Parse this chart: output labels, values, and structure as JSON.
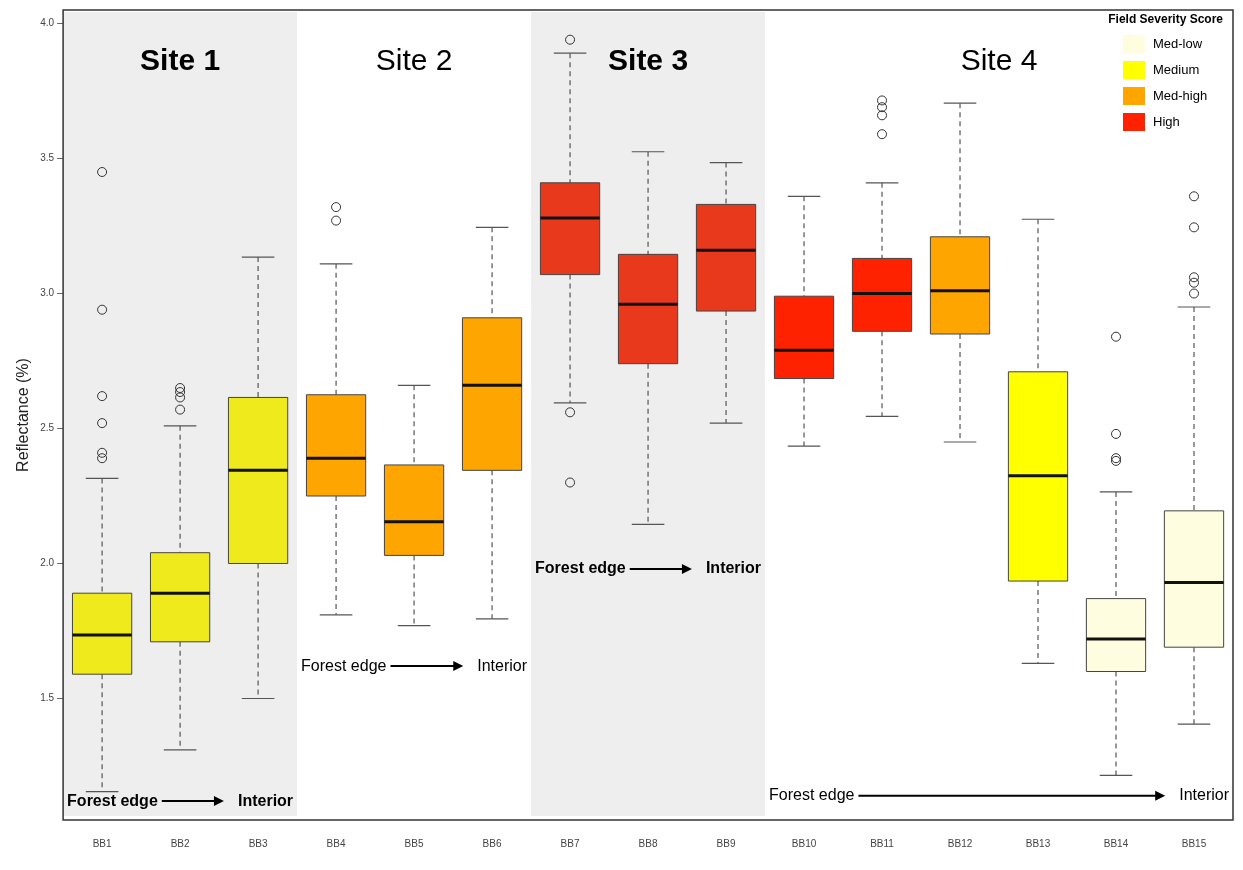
{
  "chart_data": {
    "type": "box",
    "ylabel": "Reflectance (%)",
    "legend_title": "Field Severity Score",
    "legend": "top right",
    "categories": [
      "BB1",
      "BB2",
      "BB3",
      "BB4",
      "BB5",
      "BB6",
      "BB7",
      "BB8",
      "BB9",
      "BB10",
      "BB11",
      "BB12",
      "BB13",
      "BB14",
      "BB15"
    ],
    "ylim": [
      1.05,
      4.05
    ],
    "yticks": [
      {
        "value": 1.5,
        "label": "1.5"
      },
      {
        "value": 2,
        "label": "2.0"
      },
      {
        "value": 2.5,
        "label": "2.5"
      },
      {
        "value": 3,
        "label": "3.0"
      },
      {
        "value": 3.5,
        "label": "3.5"
      },
      {
        "value": 4,
        "label": "4.0"
      }
    ],
    "bands": [
      {
        "axis": "x",
        "from": "BB1",
        "to": "BB3",
        "label": "Site 1",
        "color": "#eeeeee"
      },
      {
        "axis": "x",
        "from": "BB7",
        "to": "BB9",
        "label": "Site 3",
        "color": "#eeeeee"
      }
    ],
    "annotations": [
      "Site 2",
      "Site 4",
      "Forest edge",
      "Interior",
      "Forest edge",
      "Interior",
      "Forest edge",
      "Interior",
      "Forest edge",
      "Interior"
    ],
    "series": [
      {
        "name": "Med-low",
        "color": "#fffde0",
        "boxes": [
          null,
          null,
          null,
          null,
          null,
          null,
          null,
          null,
          null,
          null,
          null,
          null,
          null,
          {
            "low": 1.215,
            "q1": 1.6,
            "median": 1.72,
            "q3": 1.87,
            "high": 2.265,
            "outliers": [
              2.84,
              2.48,
              2.39,
              2.38
            ]
          },
          {
            "low": 1.405,
            "q1": 1.69,
            "median": 1.93,
            "q3": 2.195,
            "high": 2.95,
            "outliers": [
              3.36,
              3.245,
              3.06,
              3.04,
              3.0
            ]
          }
        ]
      },
      {
        "name": "Medium",
        "color": "#ffff00",
        "colors": [
          "#eeea1c",
          "#eeea1c",
          "#eeea1c",
          null,
          null,
          null,
          null,
          null,
          null,
          null,
          null,
          null,
          null,
          null,
          null
        ],
        "boxes": [
          {
            "low": 1.155,
            "q1": 1.59,
            "median": 1.735,
            "q3": 1.89,
            "high": 2.315,
            "outliers": [
              3.45,
              2.94,
              2.62,
              2.52,
              2.41,
              2.39
            ]
          },
          {
            "low": 1.31,
            "q1": 1.71,
            "median": 1.89,
            "q3": 2.04,
            "high": 2.51,
            "outliers": [
              2.65,
              2.635,
              2.615,
              2.57
            ]
          },
          {
            "low": 1.5,
            "q1": 2.0,
            "median": 2.345,
            "q3": 2.615,
            "high": 3.135
          },
          null,
          null,
          null,
          null,
          null,
          null,
          null,
          null,
          null,
          {
            "low": 1.63,
            "q1": 1.935,
            "median": 2.325,
            "q3": 2.71,
            "high": 3.275
          },
          null,
          null
        ]
      },
      {
        "name": "Med-high",
        "color": "#ffa500",
        "boxes": [
          null,
          null,
          null,
          {
            "low": 1.81,
            "q1": 2.25,
            "median": 2.39,
            "q3": 2.625,
            "high": 3.11,
            "outliers": [
              3.32,
              3.27
            ]
          },
          {
            "low": 1.77,
            "q1": 2.03,
            "median": 2.155,
            "q3": 2.365,
            "high": 2.66
          },
          {
            "low": 1.795,
            "q1": 2.345,
            "median": 2.66,
            "q3": 2.91,
            "high": 3.245
          },
          null,
          null,
          null,
          null,
          null,
          {
            "low": 2.45,
            "q1": 2.85,
            "median": 3.01,
            "q3": 3.21,
            "high": 3.705
          },
          null,
          null,
          null
        ]
      },
      {
        "name": "High",
        "color": "#ff2200",
        "colors": [
          null,
          null,
          null,
          null,
          null,
          null,
          "#e8391c",
          "#e8391c",
          "#e8391c",
          null,
          null,
          null,
          null,
          null,
          null
        ],
        "boxes": [
          null,
          null,
          null,
          null,
          null,
          null,
          {
            "low": 2.595,
            "q1": 3.07,
            "median": 3.28,
            "q3": 3.41,
            "high": 3.89,
            "outliers": [
              3.94,
              2.56,
              2.3
            ]
          },
          {
            "low": 2.145,
            "q1": 2.74,
            "median": 2.96,
            "q3": 3.145,
            "high": 3.525
          },
          {
            "low": 2.52,
            "q1": 2.935,
            "median": 3.16,
            "q3": 3.33,
            "high": 3.485
          },
          {
            "low": 2.435,
            "q1": 2.685,
            "median": 2.79,
            "q3": 2.99,
            "high": 3.36
          },
          {
            "low": 2.545,
            "q1": 2.86,
            "median": 3.0,
            "q3": 3.13,
            "high": 3.41,
            "outliers": [
              3.715,
              3.69,
              3.66,
              3.59
            ]
          },
          null,
          null,
          null,
          null
        ]
      }
    ]
  }
}
